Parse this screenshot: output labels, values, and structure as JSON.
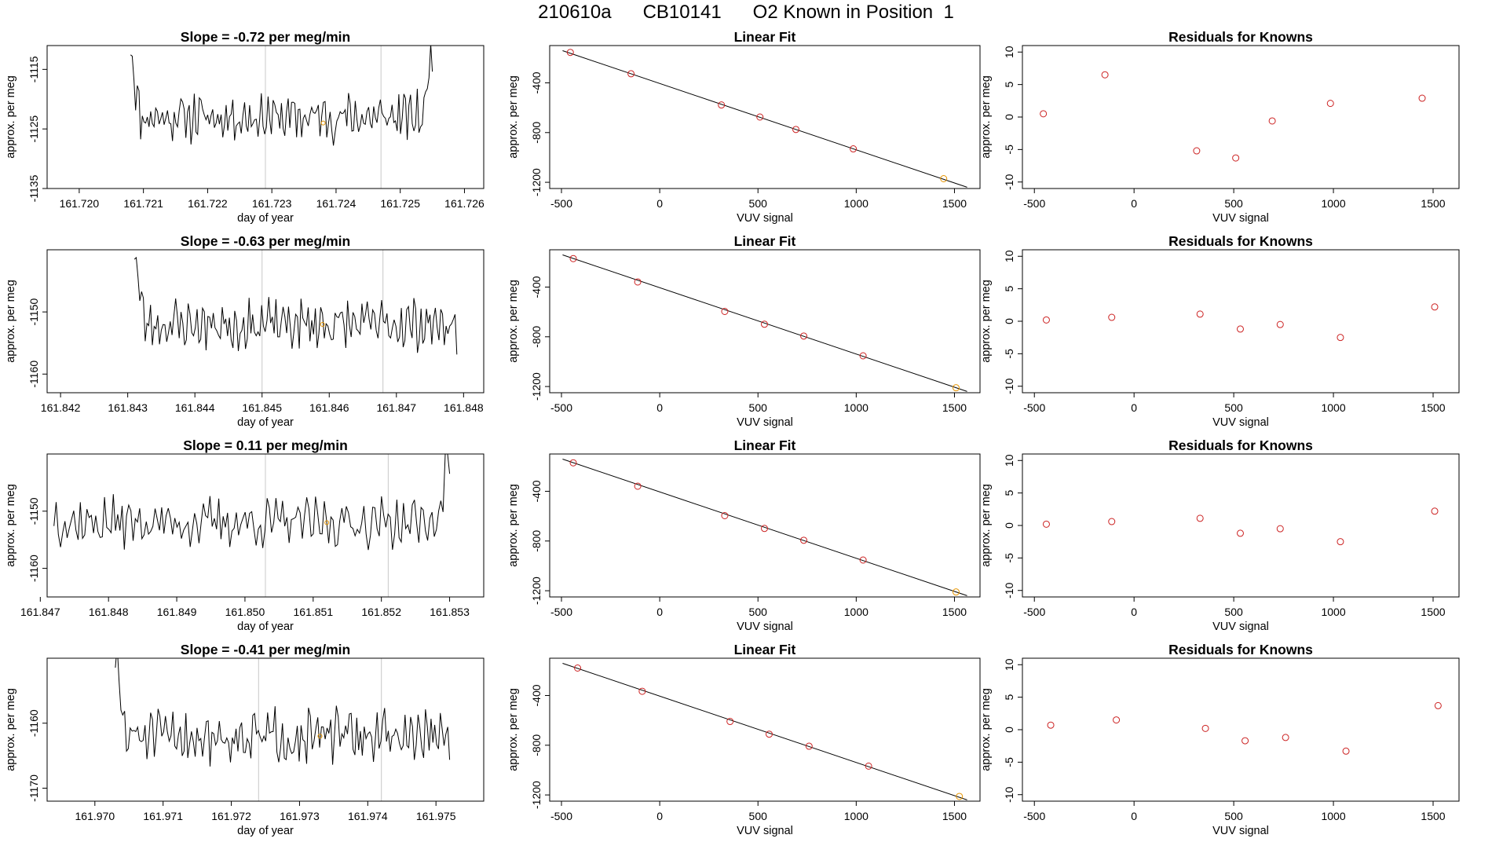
{
  "header": {
    "run_id": "210610a",
    "cylinder": "CB10141",
    "description": "O2 Known in Position  1"
  },
  "colors": {
    "points": "#cc2222",
    "known_point": "#e69400",
    "lines": "#000000",
    "vlines": "#c8c8c8"
  },
  "chart_data": [
    {
      "type": "line",
      "title": "Slope =  -0.72  per meg/min",
      "xlabel": "day of year",
      "ylabel": "approx. per meg",
      "xlim": [
        161.7195,
        161.7263
      ],
      "ylim": [
        -1135,
        -1111
      ],
      "xticks": [
        "161.720",
        "161.721",
        "161.722",
        "161.723",
        "161.724",
        "161.725",
        "161.726"
      ],
      "yticks": [
        "-1115",
        "-1125",
        "-1135"
      ],
      "vlines": [
        161.7229,
        161.7247
      ],
      "marker": {
        "x": 161.7238,
        "y": -1124
      },
      "baseline": -1123,
      "start_x": 161.7208,
      "end_x": 161.7255,
      "start_y": -1111,
      "end_y": -1111,
      "amplitude": 3.0,
      "seed": 11
    },
    {
      "type": "scatter",
      "title": "Linear Fit",
      "xlabel": "VUV signal",
      "ylabel": "approx. per meg",
      "xlim": [
        -560,
        1630
      ],
      "ylim": [
        -1250,
        -100
      ],
      "xticks": [
        "-500",
        "0",
        "500",
        "1000",
        "1500"
      ],
      "yticks": [
        "-400",
        "-800",
        "-1200"
      ],
      "fit": {
        "slope": -0.5337,
        "intercept": -405
      },
      "points": [
        [
          -455,
          -155
        ],
        [
          -146,
          -327
        ],
        [
          314,
          -578
        ],
        [
          510,
          -675
        ],
        [
          693,
          -775
        ],
        [
          985,
          -931
        ],
        [
          1445,
          -1171
        ]
      ],
      "known_index": 6
    },
    {
      "type": "scatter",
      "title": "Residuals for Knowns",
      "xlabel": "VUV signal",
      "ylabel": "approx. per meg",
      "xlim": [
        -560,
        1630
      ],
      "ylim": [
        -11,
        11
      ],
      "xticks": [
        "-500",
        "0",
        "500",
        "1000",
        "1500"
      ],
      "yticks": [
        "10",
        "5",
        "0",
        "-5",
        "-10"
      ],
      "points": [
        [
          -455,
          0.5
        ],
        [
          -146,
          6.5
        ],
        [
          314,
          -5.2
        ],
        [
          510,
          -6.3
        ],
        [
          693,
          -0.6
        ],
        [
          985,
          2.1
        ],
        [
          1445,
          2.9
        ]
      ]
    },
    {
      "type": "line",
      "title": "Slope =  -0.63  per meg/min",
      "xlabel": "day of year",
      "ylabel": "approx. per meg",
      "xlim": [
        161.8418,
        161.8483
      ],
      "ylim": [
        -1163,
        -1140
      ],
      "xticks": [
        "161.842",
        "161.843",
        "161.844",
        "161.845",
        "161.846",
        "161.847",
        "161.848"
      ],
      "yticks": [
        "-1150",
        "-1160"
      ],
      "vlines": [
        161.845,
        161.8468
      ],
      "marker": {
        "x": 161.8459,
        "y": -1152
      },
      "baseline": -1152,
      "start_x": 161.8431,
      "end_x": 161.8479,
      "start_y": -1140,
      "end_y": -1153,
      "amplitude": 3.0,
      "seed": 23
    },
    {
      "type": "scatter",
      "title": "Linear Fit",
      "xlabel": "VUV signal",
      "ylabel": "approx. per meg",
      "xlim": [
        -560,
        1630
      ],
      "ylim": [
        -1250,
        -100
      ],
      "xticks": [
        "-500",
        "0",
        "500",
        "1000",
        "1500"
      ],
      "yticks": [
        "-400",
        "-800",
        "-1200"
      ],
      "fit": {
        "slope": -0.5337,
        "intercept": -405
      },
      "points": [
        [
          -440,
          -171
        ],
        [
          -112,
          -359
        ],
        [
          331,
          -596
        ],
        [
          533,
          -699
        ],
        [
          733,
          -794
        ],
        [
          1035,
          -953
        ],
        [
          1508,
          -1210
        ]
      ],
      "known_index": 6
    },
    {
      "type": "scatter",
      "title": "Residuals for Knowns",
      "xlabel": "VUV signal",
      "ylabel": "approx. per meg",
      "xlim": [
        -560,
        1630
      ],
      "ylim": [
        -11,
        11
      ],
      "xticks": [
        "-500",
        "0",
        "500",
        "1000",
        "1500"
      ],
      "yticks": [
        "10",
        "5",
        "0",
        "-5",
        "-10"
      ],
      "points": [
        [
          -440,
          0.2
        ],
        [
          -112,
          0.6
        ],
        [
          331,
          1.1
        ],
        [
          533,
          -1.2
        ],
        [
          733,
          -0.5
        ],
        [
          1035,
          -2.5
        ],
        [
          1508,
          2.2
        ]
      ]
    },
    {
      "type": "line",
      "title": "Slope =  0.11  per meg/min",
      "xlabel": "day of year",
      "ylabel": "approx. per meg",
      "xlim": [
        161.8471,
        161.8535
      ],
      "ylim": [
        -1165,
        -1140
      ],
      "xticks": [
        "161.847",
        "161.848",
        "161.849",
        "161.850",
        "161.851",
        "161.852",
        "161.853"
      ],
      "yticks": [
        "-1150",
        "-1160"
      ],
      "vlines": [
        161.8503,
        161.8521
      ],
      "marker": {
        "x": 161.8512,
        "y": -1152
      },
      "baseline": -1152,
      "start_x": 161.8472,
      "end_x": 161.853,
      "start_y": -1151,
      "end_y": -1140,
      "amplitude": 3.2,
      "seed": 37
    },
    {
      "type": "scatter",
      "title": "Linear Fit",
      "xlabel": "VUV signal",
      "ylabel": "approx. per meg",
      "xlim": [
        -560,
        1630
      ],
      "ylim": [
        -1250,
        -100
      ],
      "xticks": [
        "-500",
        "0",
        "500",
        "1000",
        "1500"
      ],
      "yticks": [
        "-400",
        "-800",
        "-1200"
      ],
      "fit": {
        "slope": -0.5337,
        "intercept": -405
      },
      "points": [
        [
          -440,
          -171
        ],
        [
          -112,
          -359
        ],
        [
          331,
          -596
        ],
        [
          533,
          -699
        ],
        [
          733,
          -794
        ],
        [
          1035,
          -953
        ],
        [
          1508,
          -1210
        ]
      ],
      "known_index": 6
    },
    {
      "type": "scatter",
      "title": "Residuals for Knowns",
      "xlabel": "VUV signal",
      "ylabel": "approx. per meg",
      "xlim": [
        -560,
        1630
      ],
      "ylim": [
        -11,
        11
      ],
      "xticks": [
        "-500",
        "0",
        "500",
        "1000",
        "1500"
      ],
      "yticks": [
        "10",
        "5",
        "0",
        "-5",
        "-10"
      ],
      "points": [
        [
          -440,
          0.2
        ],
        [
          -112,
          0.6
        ],
        [
          331,
          1.1
        ],
        [
          533,
          -1.2
        ],
        [
          733,
          -0.5
        ],
        [
          1035,
          -2.5
        ],
        [
          1508,
          2.2
        ]
      ]
    },
    {
      "type": "line",
      "title": "Slope =  -0.41  per meg/min",
      "xlabel": "day of year",
      "ylabel": "approx. per meg",
      "xlim": [
        161.9693,
        161.9757
      ],
      "ylim": [
        -1172,
        -1150
      ],
      "xticks": [
        "161.970",
        "161.971",
        "161.972",
        "161.973",
        "161.974",
        "161.975"
      ],
      "yticks": [
        "-1160",
        "-1170"
      ],
      "vlines": [
        161.9724,
        161.9742
      ],
      "marker": {
        "x": 161.9733,
        "y": -1162
      },
      "baseline": -1162,
      "start_x": 161.9703,
      "end_x": 161.9752,
      "start_y": -1150,
      "end_y": -1163,
      "amplitude": 3.0,
      "seed": 51
    },
    {
      "type": "scatter",
      "title": "Linear Fit",
      "xlabel": "VUV signal",
      "ylabel": "approx. per meg",
      "xlim": [
        -560,
        1630
      ],
      "ylim": [
        -1250,
        -100
      ],
      "xticks": [
        "-500",
        "0",
        "500",
        "1000",
        "1500"
      ],
      "yticks": [
        "-400",
        "-800",
        "-1200"
      ],
      "fit": {
        "slope": -0.5337,
        "intercept": -405
      },
      "points": [
        [
          -418,
          -179
        ],
        [
          -89,
          -366
        ],
        [
          358,
          -609
        ],
        [
          557,
          -711
        ],
        [
          760,
          -808
        ],
        [
          1063,
          -968
        ],
        [
          1525,
          -1212
        ]
      ],
      "known_index": 6
    },
    {
      "type": "scatter",
      "title": "Residuals for Knowns",
      "xlabel": "VUV signal",
      "ylabel": "approx. per meg",
      "xlim": [
        -560,
        1630
      ],
      "ylim": [
        -11,
        11
      ],
      "xticks": [
        "-500",
        "0",
        "500",
        "1000",
        "1500"
      ],
      "yticks": [
        "10",
        "5",
        "0",
        "-5",
        "-10"
      ],
      "points": [
        [
          -418,
          0.7
        ],
        [
          -89,
          1.5
        ],
        [
          358,
          0.2
        ],
        [
          557,
          -1.7
        ],
        [
          760,
          -1.2
        ],
        [
          1063,
          -3.3
        ],
        [
          1525,
          3.7
        ]
      ]
    }
  ]
}
